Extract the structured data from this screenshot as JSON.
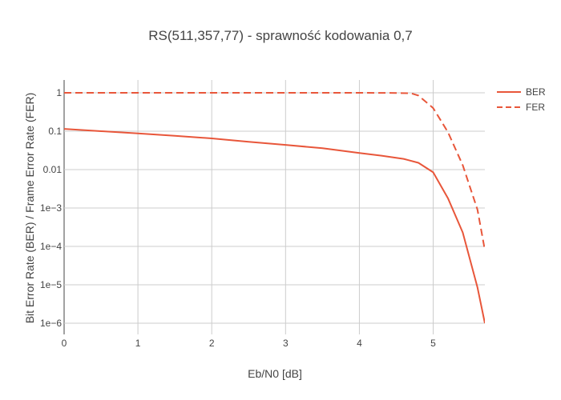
{
  "chart_data": {
    "type": "line",
    "title": "RS(511,357,77) - sprawność kodowania 0,7",
    "xlabel": "Eb/N0 [dB]",
    "ylabel": "Bit Error Rate (BER) / Frame Error Rate (FER)",
    "xlim": [
      0,
      5.7
    ],
    "ylim": [
      1e-06,
      1
    ],
    "yscale": "log",
    "grid": true,
    "legend_position": "top-right",
    "x_ticks": [
      "0",
      "1",
      "2",
      "3",
      "4",
      "5"
    ],
    "y_ticks": [
      "1e−6",
      "1e−5",
      "1e−4",
      "1e−3",
      "0.01",
      "0.1",
      "1"
    ],
    "series": [
      {
        "name": "BER",
        "color": "#e8563a",
        "dash": "solid",
        "x": [
          0,
          0.5,
          1,
          1.5,
          2,
          2.5,
          3,
          3.5,
          4,
          4.3,
          4.6,
          4.8,
          5.0,
          5.2,
          5.4,
          5.6,
          5.7
        ],
        "y": [
          0.115,
          0.1,
          0.088,
          0.076,
          0.065,
          0.053,
          0.044,
          0.036,
          0.027,
          0.023,
          0.019,
          0.015,
          0.0085,
          0.0018,
          0.00023,
          8.5e-06,
          1e-06
        ]
      },
      {
        "name": "FER",
        "color": "#e8563a",
        "dash": "dashed",
        "x": [
          0,
          1,
          2,
          3,
          4,
          4.5,
          4.7,
          4.8,
          5.0,
          5.2,
          5.4,
          5.6,
          5.7
        ],
        "y": [
          1,
          1,
          1,
          1,
          1,
          0.99,
          0.97,
          0.85,
          0.4,
          0.095,
          0.013,
          0.0009,
          8e-05
        ]
      }
    ]
  }
}
